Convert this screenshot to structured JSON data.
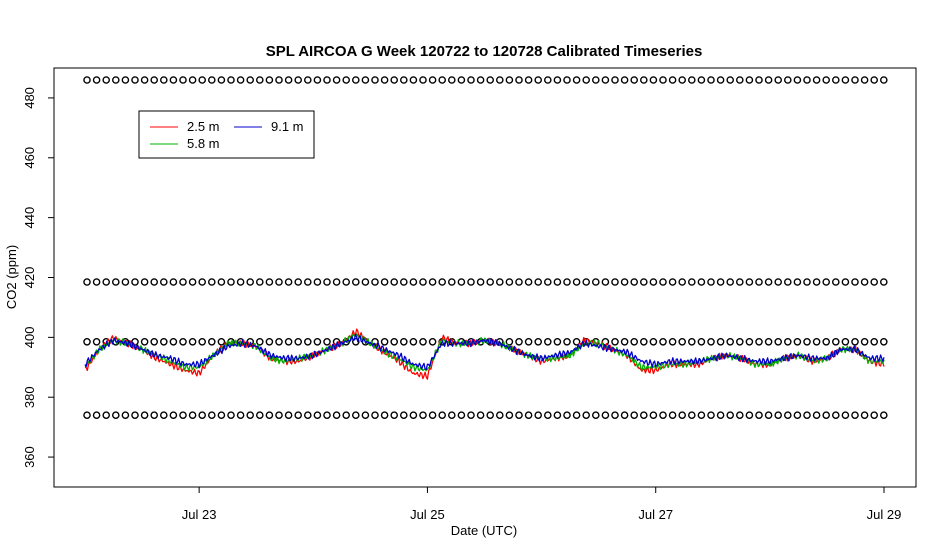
{
  "chart_data": {
    "type": "line",
    "title": "SPL AIRCOA G  Week 120722 to 120728  Calibrated Timeseries",
    "xlabel": "Date (UTC)",
    "ylabel": "CO2 (ppm)",
    "xlim": [
      "2012-07-22T00:00",
      "2012-07-29T00:00"
    ],
    "ylim": [
      350,
      490
    ],
    "x_ticks": [
      {
        "label": "Jul 23",
        "day": 1
      },
      {
        "label": "Jul 25",
        "day": 3
      },
      {
        "label": "Jul 27",
        "day": 5
      },
      {
        "label": "Jul 29",
        "day": 7
      }
    ],
    "y_ticks": [
      360,
      380,
      400,
      420,
      440,
      460,
      480
    ],
    "legend": {
      "placement": "top-left",
      "entries": [
        {
          "name": "2.5 m",
          "color": "#ff0000"
        },
        {
          "name": "5.8 m",
          "color": "#00b000"
        },
        {
          "name": "9.1 m",
          "color": "#0000cc"
        }
      ]
    },
    "calibration_levels": [
      {
        "value": 486,
        "symbol": "o"
      },
      {
        "value": 418.5,
        "symbol": "o"
      },
      {
        "value": 398.5,
        "symbol": "o"
      },
      {
        "value": 374,
        "symbol": "o"
      }
    ],
    "series": [
      {
        "name": "2.5 m",
        "color": "#ff0000",
        "x": [
          "2012-07-22T00:00",
          "2012-07-22T03:00",
          "2012-07-22T06:00",
          "2012-07-22T09:00",
          "2012-07-22T12:00",
          "2012-07-22T15:00",
          "2012-07-22T18:00",
          "2012-07-22T21:00",
          "2012-07-23T00:00",
          "2012-07-23T03:00",
          "2012-07-23T06:00",
          "2012-07-23T09:00",
          "2012-07-23T12:00",
          "2012-07-23T15:00",
          "2012-07-23T18:00",
          "2012-07-23T21:00",
          "2012-07-24T00:00",
          "2012-07-24T03:00",
          "2012-07-24T06:00",
          "2012-07-24T09:00",
          "2012-07-24T12:00",
          "2012-07-24T15:00",
          "2012-07-24T18:00",
          "2012-07-24T21:00",
          "2012-07-25T00:00",
          "2012-07-25T03:00",
          "2012-07-25T06:00",
          "2012-07-25T09:00",
          "2012-07-25T12:00",
          "2012-07-25T15:00",
          "2012-07-25T18:00",
          "2012-07-25T21:00",
          "2012-07-26T00:00",
          "2012-07-26T03:00",
          "2012-07-26T06:00",
          "2012-07-26T09:00",
          "2012-07-26T12:00",
          "2012-07-26T15:00",
          "2012-07-26T18:00",
          "2012-07-26T21:00",
          "2012-07-27T00:00",
          "2012-07-27T03:00",
          "2012-07-27T06:00",
          "2012-07-27T09:00",
          "2012-07-27T12:00",
          "2012-07-27T15:00",
          "2012-07-27T18:00",
          "2012-07-27T21:00",
          "2012-07-28T00:00",
          "2012-07-28T03:00",
          "2012-07-28T06:00",
          "2012-07-28T09:00",
          "2012-07-28T12:00",
          "2012-07-28T15:00",
          "2012-07-28T18:00",
          "2012-07-28T21:00",
          "2012-07-29T00:00"
        ],
        "values": [
          389,
          396,
          400,
          398,
          396,
          393,
          391,
          389,
          388,
          394,
          398,
          398,
          397,
          393,
          392,
          392,
          394,
          396,
          398,
          402,
          398,
          395,
          392,
          388,
          387,
          400,
          398,
          398,
          399,
          398,
          396,
          394,
          392,
          393,
          394,
          399,
          398,
          396,
          394,
          389,
          389,
          391,
          391,
          391,
          393,
          394,
          393,
          391,
          391,
          393,
          394,
          392,
          393,
          396,
          396,
          392,
          391
        ]
      },
      {
        "name": "5.8 m",
        "color": "#00b000",
        "x": [
          "2012-07-22T00:00",
          "2012-07-22T03:00",
          "2012-07-22T06:00",
          "2012-07-22T09:00",
          "2012-07-22T12:00",
          "2012-07-22T15:00",
          "2012-07-22T18:00",
          "2012-07-22T21:00",
          "2012-07-23T00:00",
          "2012-07-23T03:00",
          "2012-07-23T06:00",
          "2012-07-23T09:00",
          "2012-07-23T12:00",
          "2012-07-23T15:00",
          "2012-07-23T18:00",
          "2012-07-23T21:00",
          "2012-07-24T00:00",
          "2012-07-24T03:00",
          "2012-07-24T06:00",
          "2012-07-24T09:00",
          "2012-07-24T12:00",
          "2012-07-24T15:00",
          "2012-07-24T18:00",
          "2012-07-24T21:00",
          "2012-07-25T00:00",
          "2012-07-25T03:00",
          "2012-07-25T06:00",
          "2012-07-25T09:00",
          "2012-07-25T12:00",
          "2012-07-25T15:00",
          "2012-07-25T18:00",
          "2012-07-25T21:00",
          "2012-07-26T00:00",
          "2012-07-26T03:00",
          "2012-07-26T06:00",
          "2012-07-26T09:00",
          "2012-07-26T12:00",
          "2012-07-26T15:00",
          "2012-07-26T18:00",
          "2012-07-26T21:00",
          "2012-07-27T00:00",
          "2012-07-27T03:00",
          "2012-07-27T06:00",
          "2012-07-27T09:00",
          "2012-07-27T12:00",
          "2012-07-27T15:00",
          "2012-07-27T18:00",
          "2012-07-27T21:00",
          "2012-07-28T00:00",
          "2012-07-28T03:00",
          "2012-07-28T06:00",
          "2012-07-28T09:00",
          "2012-07-28T12:00",
          "2012-07-28T15:00",
          "2012-07-28T18:00",
          "2012-07-28T21:00",
          "2012-07-29T00:00"
        ],
        "values": [
          390,
          396,
          399,
          398,
          396,
          394,
          392,
          390,
          390,
          394,
          398,
          398,
          397,
          393,
          392,
          393,
          394,
          396,
          398,
          401,
          398,
          395,
          393,
          390,
          389,
          399,
          398,
          398,
          399,
          398,
          396,
          394,
          393,
          393,
          394,
          398,
          398,
          396,
          394,
          390,
          390,
          391,
          391,
          392,
          393,
          394,
          393,
          391,
          391,
          393,
          394,
          392,
          393,
          396,
          396,
          392,
          392
        ]
      },
      {
        "name": "9.1 m",
        "color": "#0000cc",
        "x": [
          "2012-07-22T00:00",
          "2012-07-22T03:00",
          "2012-07-22T06:00",
          "2012-07-22T09:00",
          "2012-07-22T12:00",
          "2012-07-22T15:00",
          "2012-07-22T18:00",
          "2012-07-22T21:00",
          "2012-07-23T00:00",
          "2012-07-23T03:00",
          "2012-07-23T06:00",
          "2012-07-23T09:00",
          "2012-07-23T12:00",
          "2012-07-23T15:00",
          "2012-07-23T18:00",
          "2012-07-23T21:00",
          "2012-07-24T00:00",
          "2012-07-24T03:00",
          "2012-07-24T06:00",
          "2012-07-24T09:00",
          "2012-07-24T12:00",
          "2012-07-24T15:00",
          "2012-07-24T18:00",
          "2012-07-24T21:00",
          "2012-07-25T00:00",
          "2012-07-25T03:00",
          "2012-07-25T06:00",
          "2012-07-25T09:00",
          "2012-07-25T12:00",
          "2012-07-25T15:00",
          "2012-07-25T18:00",
          "2012-07-25T21:00",
          "2012-07-26T00:00",
          "2012-07-26T03:00",
          "2012-07-26T06:00",
          "2012-07-26T09:00",
          "2012-07-26T12:00",
          "2012-07-26T15:00",
          "2012-07-26T18:00",
          "2012-07-26T21:00",
          "2012-07-27T00:00",
          "2012-07-27T03:00",
          "2012-07-27T06:00",
          "2012-07-27T09:00",
          "2012-07-27T12:00",
          "2012-07-27T15:00",
          "2012-07-27T18:00",
          "2012-07-27T21:00",
          "2012-07-28T00:00",
          "2012-07-28T03:00",
          "2012-07-28T06:00",
          "2012-07-28T09:00",
          "2012-07-28T12:00",
          "2012-07-28T15:00",
          "2012-07-28T18:00",
          "2012-07-28T21:00",
          "2012-07-29T00:00"
        ],
        "values": [
          391,
          396,
          399,
          398,
          396,
          394,
          393,
          391,
          391,
          394,
          397,
          398,
          397,
          394,
          393,
          393,
          394,
          396,
          398,
          400,
          398,
          396,
          394,
          391,
          390,
          398,
          398,
          398,
          399,
          398,
          396,
          394,
          393,
          394,
          395,
          398,
          397,
          396,
          395,
          392,
          391,
          392,
          392,
          392,
          393,
          394,
          393,
          392,
          392,
          393,
          394,
          393,
          393,
          396,
          396,
          393,
          393
        ]
      }
    ]
  }
}
